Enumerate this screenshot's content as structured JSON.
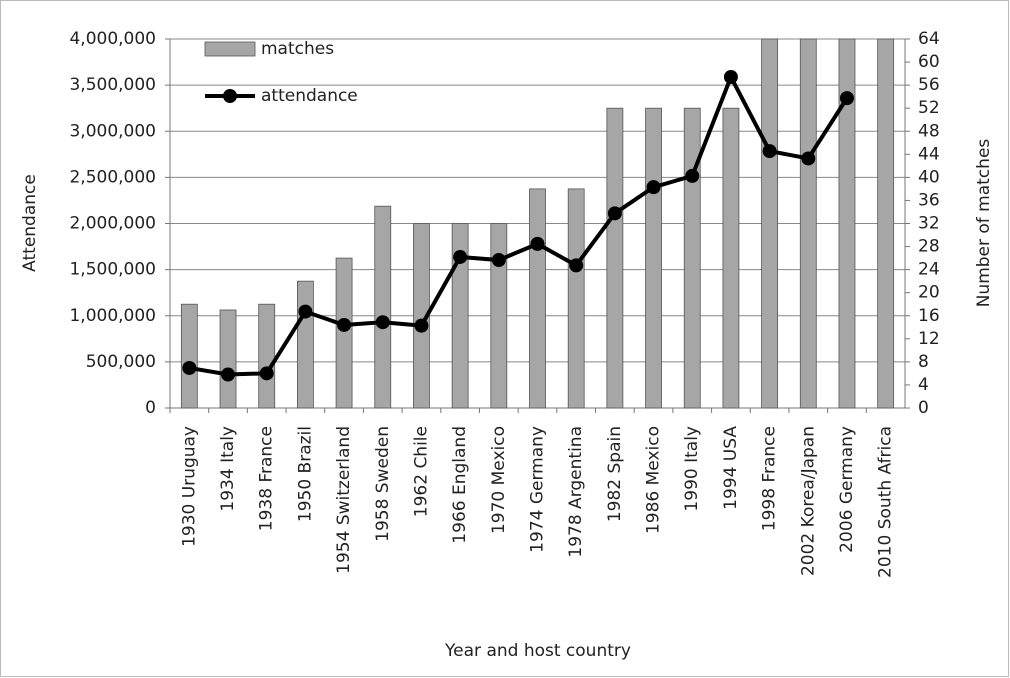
{
  "chart_data": {
    "type": "bar",
    "x_label": "Year and host country",
    "y_label": "Attendance",
    "y2_label": "Number of matches",
    "categories": [
      "1930 Uruguay",
      "1934 Italy",
      "1938 France",
      "1950 Brazil",
      "1954 Switzerland",
      "1958 Sweden",
      "1962 Chile",
      "1966 England",
      "1970 Mexico",
      "1974 Germany",
      "1978 Argentina",
      "1982 Spain",
      "1986 Mexico",
      "1990 Italy",
      "1994 USA",
      "1998 France",
      "2002 Korea/Japan",
      "2006 Germany",
      "2010 South Africa"
    ],
    "series": [
      {
        "name": "matches",
        "type": "bar",
        "axis": "y2",
        "color": "#a6a6a6",
        "values": [
          18,
          17,
          18,
          22,
          26,
          35,
          32,
          32,
          32,
          38,
          38,
          52,
          52,
          52,
          52,
          64,
          64,
          64,
          64
        ]
      },
      {
        "name": "attendance",
        "type": "line",
        "color": "#000000",
        "values": [
          434000,
          363000,
          376000,
          1045000,
          900000,
          930000,
          893000,
          1637000,
          1604000,
          1779000,
          1546000,
          2110000,
          2394000,
          2516000,
          3588000,
          2785000,
          2705000,
          3359000,
          null
        ]
      }
    ],
    "ylim": [
      0,
      4000000
    ],
    "yticks": [
      0,
      {
        "value": 500000,
        "label": "500,000"
      },
      {
        "value": 1000000,
        "label": "1,000,000"
      },
      {
        "value": 1500000,
        "label": "1,500,000"
      },
      {
        "value": 2000000,
        "label": "2,000,000"
      },
      {
        "value": 2500000,
        "label": "2,500,000"
      },
      {
        "value": 3000000,
        "label": "3,000,000"
      },
      {
        "value": 3500000,
        "label": "3,500,000"
      },
      {
        "value": 4000000,
        "label": "4,000,000"
      }
    ],
    "y2lim": [
      0,
      64
    ],
    "y2ticks": [
      0,
      4,
      8,
      12,
      16,
      20,
      24,
      28,
      32,
      36,
      40,
      44,
      48,
      52,
      56,
      60,
      64
    ],
    "grid": true
  }
}
